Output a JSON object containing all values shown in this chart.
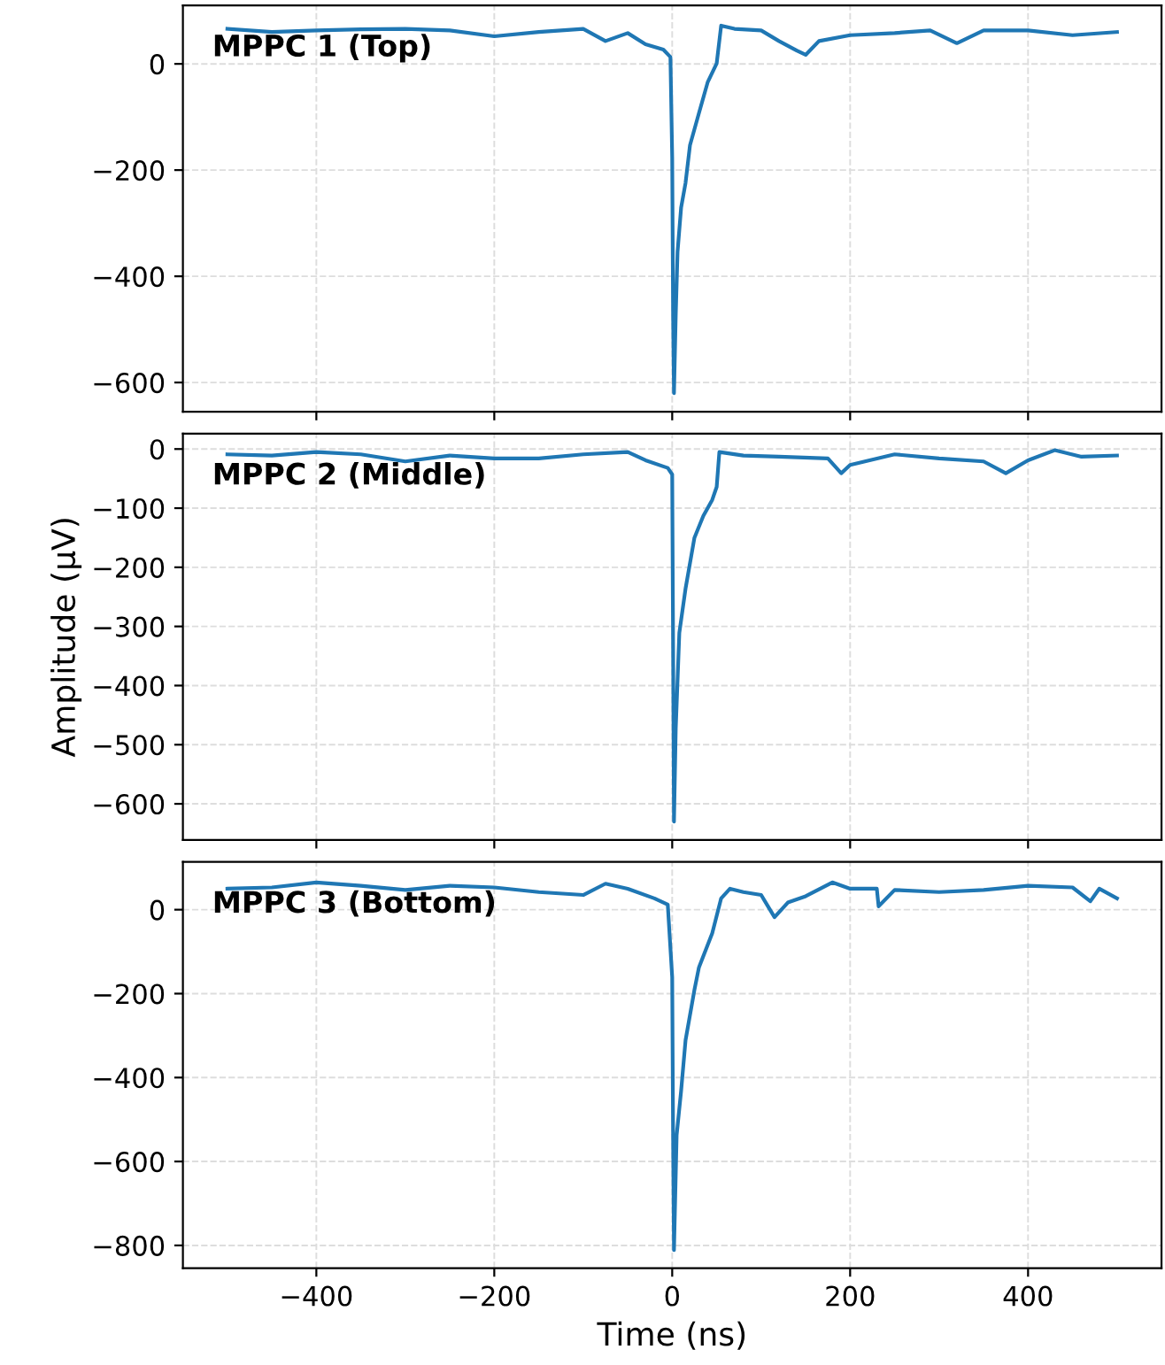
{
  "chart_data": [
    {
      "type": "line",
      "annotations": [
        "MPPC 1 (Top)"
      ],
      "xlim": [
        -550,
        550
      ],
      "xticks": [
        {
          "value": -400,
          "label": null
        },
        {
          "value": -200,
          "label": null
        },
        {
          "value": 0,
          "label": null
        },
        {
          "value": 200,
          "label": null
        },
        {
          "value": 400,
          "label": null
        }
      ],
      "ylim": [
        -655,
        110
      ],
      "yticks": [
        {
          "value": -600,
          "label": "−600"
        },
        {
          "value": -400,
          "label": "−400"
        },
        {
          "value": -200,
          "label": "−200"
        },
        0
      ],
      "tick_labels": "y",
      "grid": true,
      "line_style": "solid",
      "series": [
        {
          "color": "#1f77b4",
          "x": [
            -500,
            -450,
            -400,
            -350,
            -300,
            -250,
            -200,
            -150,
            -100,
            -75,
            -50,
            -30,
            -10,
            -2,
            0,
            1,
            2,
            4,
            6,
            10,
            15,
            20,
            25,
            30,
            40,
            50,
            55,
            70,
            100,
            120,
            140,
            150,
            165,
            200,
            250,
            290,
            320,
            350,
            400,
            450,
            500
          ],
          "values": [
            66,
            60,
            63,
            65,
            66,
            63,
            52,
            60,
            66,
            43,
            58,
            37,
            27,
            13,
            -176,
            -472,
            -620,
            -472,
            -354,
            -271,
            -224,
            -153,
            -123,
            -93,
            -34,
            1,
            72,
            66,
            63,
            43,
            25,
            17,
            43,
            54,
            58,
            63,
            39,
            63,
            63,
            54,
            60
          ]
        }
      ]
    },
    {
      "type": "line",
      "annotations": [
        "MPPC 2 (Middle)"
      ],
      "ylabel": "Amplitude (μV)",
      "xlim": [
        -550,
        550
      ],
      "xticks": [
        {
          "value": -400,
          "label": null
        },
        {
          "value": -200,
          "label": null
        },
        {
          "value": 0,
          "label": null
        },
        {
          "value": 200,
          "label": null
        },
        {
          "value": 400,
          "label": null
        }
      ],
      "ylim": [
        -661,
        26
      ],
      "yticks": [
        {
          "value": -600,
          "label": "−600"
        },
        {
          "value": -500,
          "label": "−500"
        },
        {
          "value": -400,
          "label": "−400"
        },
        {
          "value": -300,
          "label": "−300"
        },
        {
          "value": -200,
          "label": "−200"
        },
        {
          "value": -100,
          "label": "−100"
        },
        0
      ],
      "tick_labels": "y",
      "grid": true,
      "line_style": "solid",
      "series": [
        {
          "color": "#1f77b4",
          "x": [
            -500,
            -450,
            -400,
            -350,
            -300,
            -250,
            -200,
            -150,
            -100,
            -50,
            -30,
            -5,
            0,
            1,
            2,
            4,
            8,
            15,
            25,
            35,
            45,
            50,
            53,
            80,
            120,
            175,
            190,
            200,
            250,
            300,
            350,
            375,
            400,
            430,
            460,
            500
          ],
          "values": [
            -9,
            -11,
            -5,
            -9,
            -21,
            -11,
            -16,
            -16,
            -9,
            -5,
            -19,
            -32,
            -43,
            -332,
            -630,
            -472,
            -311,
            -236,
            -150,
            -113,
            -86,
            -64,
            -5,
            -11,
            -13,
            -16,
            -41,
            -27,
            -9,
            -16,
            -21,
            -41,
            -19,
            -2,
            -13,
            -11
          ]
        }
      ]
    },
    {
      "type": "line",
      "annotations": [
        "MPPC 3 (Bottom)"
      ],
      "xlabel": "Time (ns)",
      "xlim": [
        -550,
        550
      ],
      "xticks": [
        {
          "value": -400,
          "label": "−400"
        },
        {
          "value": -200,
          "label": "−200"
        },
        0,
        200,
        400
      ],
      "ylim": [
        -854,
        114
      ],
      "yticks": [
        {
          "value": -800,
          "label": "−800"
        },
        {
          "value": -600,
          "label": "−600"
        },
        {
          "value": -400,
          "label": "−400"
        },
        {
          "value": -200,
          "label": "−200"
        },
        0
      ],
      "grid": true,
      "line_style": "solid",
      "series": [
        {
          "color": "#1f77b4",
          "x": [
            -500,
            -450,
            -400,
            -350,
            -300,
            -250,
            -200,
            -150,
            -100,
            -75,
            -50,
            -20,
            -5,
            0,
            1,
            2,
            5,
            10,
            15,
            25,
            30,
            45,
            55,
            65,
            80,
            100,
            115,
            130,
            150,
            180,
            200,
            230,
            232,
            250,
            300,
            350,
            400,
            450,
            470,
            480,
            500
          ],
          "values": [
            50,
            53,
            65,
            57,
            47,
            57,
            53,
            42,
            35,
            62,
            50,
            27,
            12,
            -161,
            -537,
            -811,
            -537,
            -432,
            -311,
            -191,
            -138,
            -56,
            27,
            50,
            42,
            35,
            -18,
            17,
            32,
            65,
            50,
            50,
            8,
            47,
            42,
            47,
            57,
            53,
            20,
            50,
            27
          ]
        }
      ]
    }
  ]
}
